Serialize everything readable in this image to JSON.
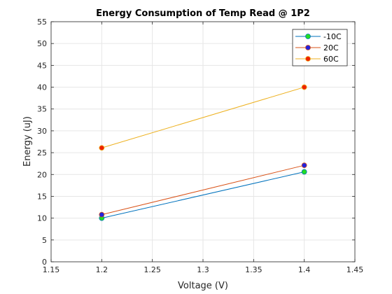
{
  "chart_data": {
    "type": "line",
    "title": "Energy Consumption of Temp Read @ 1P2",
    "xlabel": "Voltage (V)",
    "ylabel": "Energy (uJ)",
    "xlim": [
      1.15,
      1.45
    ],
    "ylim": [
      0,
      55
    ],
    "xticks": [
      1.15,
      1.2,
      1.25,
      1.3,
      1.35,
      1.4,
      1.45
    ],
    "xtick_labels": [
      "1.15",
      "1.2",
      "1.25",
      "1.3",
      "1.35",
      "1.4",
      "1.45"
    ],
    "yticks": [
      0,
      5,
      10,
      15,
      20,
      25,
      30,
      35,
      40,
      45,
      50,
      55
    ],
    "ytick_labels": [
      "0",
      "5",
      "10",
      "15",
      "20",
      "25",
      "30",
      "35",
      "40",
      "45",
      "50",
      "55"
    ],
    "grid": true,
    "legend_position": "top-right",
    "x": [
      1.2,
      1.4
    ],
    "series": [
      {
        "name": "-10C",
        "values": [
          10.0,
          20.6
        ],
        "line_color": "#0072bd",
        "marker_color": "#22dd22"
      },
      {
        "name": "20C",
        "values": [
          10.8,
          22.1
        ],
        "line_color": "#d95319",
        "marker_color": "#2222dd"
      },
      {
        "name": "60C",
        "values": [
          26.1,
          40.0
        ],
        "line_color": "#edb120",
        "marker_color": "#ee2200"
      }
    ]
  }
}
